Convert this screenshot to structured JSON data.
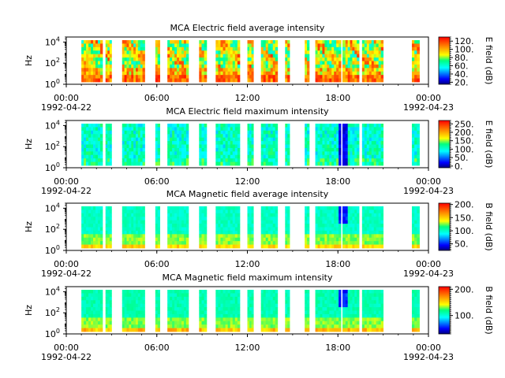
{
  "chart_data": [
    {
      "type": "heatmap",
      "title": "MCA  Electric field average intensity",
      "ylabel": "Hz",
      "y_scale": "log",
      "y_ticks": [
        {
          "exp": "0"
        },
        {
          "exp": "2"
        },
        {
          "exp": "4"
        }
      ],
      "ylim": [
        1,
        30000
      ],
      "x_tick_labels": [
        "00:00",
        "06:00",
        "12:00",
        "18:00",
        "00:00"
      ],
      "x_date_labels": [
        "1992-04-22",
        "1992-04-23"
      ],
      "colorbar": {
        "label": "E field (dB)",
        "ticks": [
          "20.",
          "40.",
          "60.",
          "80.",
          "100.",
          "120."
        ],
        "range": [
          15,
          130
        ]
      },
      "palette": "avg"
    },
    {
      "type": "heatmap",
      "title": "MCA  Electric field maximum intensity",
      "ylabel": "Hz",
      "y_scale": "log",
      "y_ticks": [
        {
          "exp": "0"
        },
        {
          "exp": "2"
        },
        {
          "exp": "4"
        }
      ],
      "ylim": [
        1,
        30000
      ],
      "x_tick_labels": [
        "00:00",
        "06:00",
        "12:00",
        "18:00",
        "00:00"
      ],
      "x_date_labels": [
        "1992-04-22",
        "1992-04-23"
      ],
      "colorbar": {
        "label": "E field (dB)",
        "ticks": [
          "0.",
          "50.",
          "100.",
          "150.",
          "200.",
          "250."
        ],
        "range": [
          -10,
          270
        ]
      },
      "palette": "emax"
    },
    {
      "type": "heatmap",
      "title": "MCA  Magnetic field average intensity",
      "ylabel": "Hz",
      "y_scale": "log",
      "y_ticks": [
        {
          "exp": "0"
        },
        {
          "exp": "2"
        },
        {
          "exp": "4"
        }
      ],
      "ylim": [
        1,
        30000
      ],
      "x_tick_labels": [
        "00:00",
        "06:00",
        "12:00",
        "18:00",
        "00:00"
      ],
      "x_date_labels": [
        "1992-04-22",
        "1992-04-23"
      ],
      "colorbar": {
        "label": "B field (dB)",
        "ticks": [
          "50.",
          "100.",
          "150.",
          "200."
        ],
        "range": [
          25,
          205
        ]
      },
      "palette": "bavg"
    },
    {
      "type": "heatmap",
      "title": "MCA  Magnetic field maximum intensity",
      "ylabel": "Hz",
      "y_scale": "log",
      "y_ticks": [
        {
          "exp": "0"
        },
        {
          "exp": "2"
        },
        {
          "exp": "4"
        }
      ],
      "ylim": [
        1,
        30000
      ],
      "x_tick_labels": [
        "00:00",
        "06:00",
        "12:00",
        "18:00",
        "00:00"
      ],
      "x_date_labels": [
        "1992-04-22",
        "1992-04-23"
      ],
      "colorbar": {
        "label": "B field (dB)",
        "ticks": [
          "100.",
          "200."
        ],
        "range": [
          30,
          210
        ]
      },
      "palette": "bmax"
    }
  ],
  "data_segments_hours": [
    [
      1.0,
      2.4
    ],
    [
      2.6,
      3.0
    ],
    [
      3.7,
      5.2
    ],
    [
      5.9,
      6.2
    ],
    [
      6.7,
      8.1
    ],
    [
      8.8,
      9.3
    ],
    [
      9.9,
      11.5
    ],
    [
      12.0,
      12.4
    ],
    [
      12.9,
      14.0
    ],
    [
      14.5,
      14.8
    ],
    [
      15.8,
      16.1
    ],
    [
      16.5,
      18.2
    ],
    [
      18.3,
      18.5
    ],
    [
      18.5,
      19.4
    ],
    [
      19.6,
      21.0
    ],
    [
      22.9,
      23.4
    ]
  ]
}
